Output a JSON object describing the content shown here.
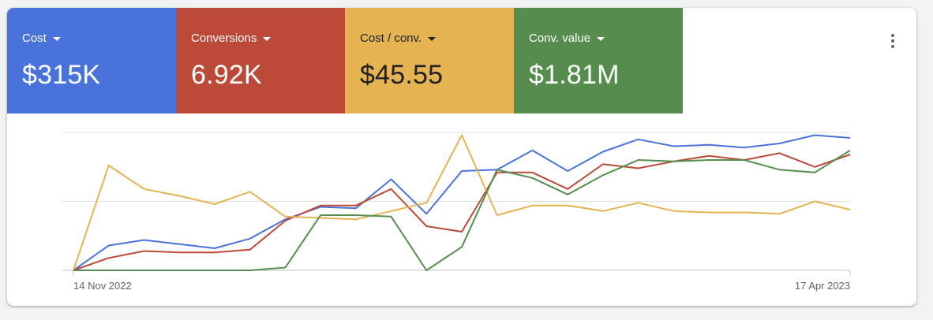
{
  "tiles": [
    {
      "label": "Cost",
      "value": "$315K",
      "color": "#4a72db",
      "text_color": "#ffffff"
    },
    {
      "label": "Conversions",
      "value": "6.92K",
      "color": "#bb4a38",
      "text_color": "#ffffff"
    },
    {
      "label": "Cost / conv.",
      "value": "$45.55",
      "color": "#e6b353",
      "text_color": "#202124"
    },
    {
      "label": "Conv. value",
      "value": "$1.81M",
      "color": "#568d4f",
      "text_color": "#ffffff"
    }
  ],
  "menu": {
    "icon": "more-vert-icon"
  },
  "chart_data": {
    "type": "line",
    "x_start_label": "14 Nov 2022",
    "x_end_label": "17 Apr 2023",
    "points": 23,
    "grid": true,
    "gridline_count": 3,
    "normalized": true,
    "series": [
      {
        "metric": "Cost",
        "color": "#4a72db",
        "values": [
          0,
          0.18,
          0.22,
          0.19,
          0.16,
          0.23,
          0.37,
          0.46,
          0.45,
          0.66,
          0.41,
          0.72,
          0.73,
          0.87,
          0.72,
          0.86,
          0.95,
          0.9,
          0.91,
          0.89,
          0.92,
          0.98,
          0.96
        ]
      },
      {
        "metric": "Conversions",
        "color": "#bb4a38",
        "values": [
          0,
          0.09,
          0.14,
          0.13,
          0.13,
          0.15,
          0.36,
          0.47,
          0.47,
          0.59,
          0.32,
          0.28,
          0.71,
          0.71,
          0.59,
          0.77,
          0.74,
          0.79,
          0.83,
          0.8,
          0.85,
          0.75,
          0.84
        ]
      },
      {
        "metric": "Cost / conv.",
        "color": "#e6b353",
        "values": [
          0,
          0.76,
          0.59,
          0.54,
          0.48,
          0.57,
          0.39,
          0.38,
          0.37,
          0.43,
          0.49,
          0.98,
          0.4,
          0.47,
          0.47,
          0.43,
          0.49,
          0.43,
          0.42,
          0.42,
          0.41,
          0.5,
          0.44
        ]
      },
      {
        "metric": "Conv. value",
        "color": "#568d4f",
        "values": [
          0,
          0,
          0,
          0,
          0,
          0,
          0.02,
          0.4,
          0.4,
          0.39,
          0,
          0.17,
          0.73,
          0.67,
          0.55,
          0.69,
          0.8,
          0.79,
          0.8,
          0.8,
          0.73,
          0.71,
          0.87
        ]
      }
    ]
  }
}
